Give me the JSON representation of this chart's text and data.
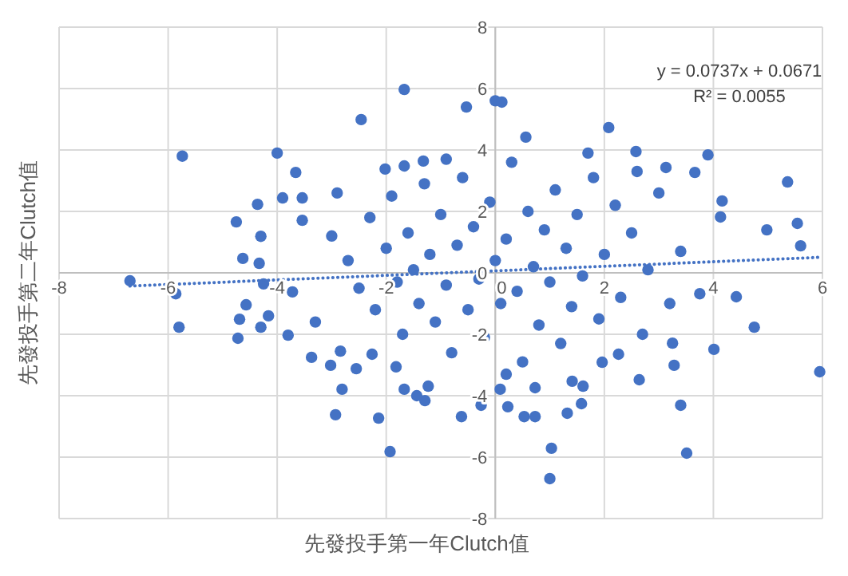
{
  "chart_data": {
    "type": "scatter",
    "xlabel": "先發投手第一年Clutch值",
    "ylabel": "先發投手第二年Clutch值",
    "xlim": [
      -8,
      6
    ],
    "ylim": [
      -8,
      8
    ],
    "xticks": [
      -8,
      -6,
      -4,
      -2,
      0,
      2,
      4,
      6
    ],
    "yticks": [
      -8,
      -6,
      -4,
      -2,
      0,
      2,
      4,
      6,
      8
    ],
    "grid": true,
    "marker": "circle",
    "annotations": [
      "y = 0.0737x + 0.0671",
      "R² = 0.0055"
    ],
    "series": [
      {
        "type": "scatter",
        "color": "#4472c4",
        "x": [
          -6.7,
          -5.74,
          -4.0,
          -3.66,
          -4.36,
          -4.75,
          -3.9,
          -3.54,
          -3.54,
          -4.3,
          -4.63,
          -4.33,
          -2.46,
          -1.67,
          -2.02,
          -1.67,
          -1.32,
          -0.53,
          0,
          0.12,
          2.08,
          0.56,
          3.9,
          2.58,
          5.36,
          4.98,
          5.54,
          5.6,
          4.13,
          4.16,
          3.13,
          3.66,
          -5.86,
          -5.8,
          -4.72,
          -4.69,
          -4.57,
          -4.3,
          -4.16,
          -3.8,
          -3.37,
          -3.02,
          -2.84,
          -2.81,
          -2.93,
          -2.55,
          -2.14,
          -1.93,
          -2.26,
          -1.67,
          -1.29,
          -1.44,
          -1.82,
          -1.23,
          -4.25,
          -3.72,
          1.03,
          1.0,
          3.51,
          3.4,
          5.95,
          4.01,
          4.75,
          4.42,
          3.75,
          3.28,
          3.25,
          2.64,
          1.32,
          0.53,
          0.73,
          -0.62,
          -0.26,
          0.23,
          1.58,
          1.41,
          1.61,
          0.09,
          2.26,
          1.96,
          0.73,
          -3,
          -2.7,
          -2.5,
          -2.3,
          -2.2,
          -2,
          -1.9,
          -1.8,
          -1.7,
          -1.6,
          -1.5,
          -1.4,
          -1.3,
          -1.2,
          -1.1,
          -1,
          -0.9,
          -0.8,
          -0.7,
          -0.6,
          -0.5,
          -0.4,
          -0.3,
          -0.2,
          -0.1,
          0,
          0.1,
          0.2,
          0.3,
          0.4,
          0.5,
          0.6,
          0.7,
          0.8,
          0.9,
          1,
          1.1,
          1.2,
          1.3,
          1.4,
          1.5,
          1.6,
          1.8,
          1.9,
          2,
          2.2,
          2.3,
          2.5,
          2.7,
          2.8,
          3,
          3.2,
          3.4,
          -3.3,
          -2.9,
          0.2,
          -0.9,
          1.7,
          2.6
        ],
        "values": [
          -0.26,
          3.8,
          3.9,
          3.27,
          2.23,
          1.66,
          2.44,
          2.44,
          1.71,
          1.19,
          0.47,
          0.31,
          4.99,
          5.97,
          3.38,
          3.48,
          3.64,
          5.4,
          5.6,
          5.56,
          4.73,
          4.42,
          3.84,
          3.95,
          2.96,
          1.4,
          1.61,
          0.88,
          1.82,
          2.34,
          3.43,
          3.27,
          -0.68,
          -1.77,
          -2.13,
          -1.51,
          -1.04,
          -1.77,
          -1.4,
          -2.03,
          -2.75,
          -3.01,
          -2.55,
          -3.79,
          -4.62,
          -3.12,
          -4.73,
          -5.82,
          -2.65,
          -3.79,
          -4.16,
          -4.0,
          -3.06,
          -3.69,
          -0.36,
          -0.62,
          -5.71,
          -6.7,
          -5.87,
          -4.31,
          -3.22,
          -2.49,
          -1.77,
          -0.78,
          -0.68,
          -3.01,
          -2.29,
          -3.48,
          -4.57,
          -4.68,
          -4.68,
          -4.68,
          -4.31,
          -4.36,
          -4.26,
          -3.53,
          -3.69,
          -3.79,
          -2.65,
          -2.91,
          -3.74,
          1.2,
          0.4,
          -0.5,
          1.8,
          -1.2,
          0.8,
          2.5,
          -0.3,
          -2,
          1.3,
          0.1,
          -1,
          2.9,
          0.6,
          -1.6,
          1.9,
          -0.4,
          -2.6,
          0.9,
          3.1,
          -1.2,
          1.5,
          -0.2,
          -2.1,
          2.3,
          0.4,
          -1,
          1.1,
          3.6,
          -0.6,
          -2.9,
          2,
          0.2,
          -1.7,
          1.4,
          -0.3,
          2.7,
          -2.3,
          0.8,
          -1.1,
          1.9,
          -0.1,
          3.1,
          -1.5,
          0.6,
          2.2,
          -0.8,
          1.3,
          -2,
          0.1,
          2.6,
          -1,
          0.7,
          -1.6,
          2.6,
          -3.3,
          3.7,
          3.9,
          3.3
        ]
      },
      {
        "type": "line",
        "color": "#4472c4",
        "line_style": "dotted",
        "marker": "none",
        "x": [
          -6.7,
          6
        ],
        "values": [
          -0.43,
          0.51
        ]
      }
    ]
  }
}
